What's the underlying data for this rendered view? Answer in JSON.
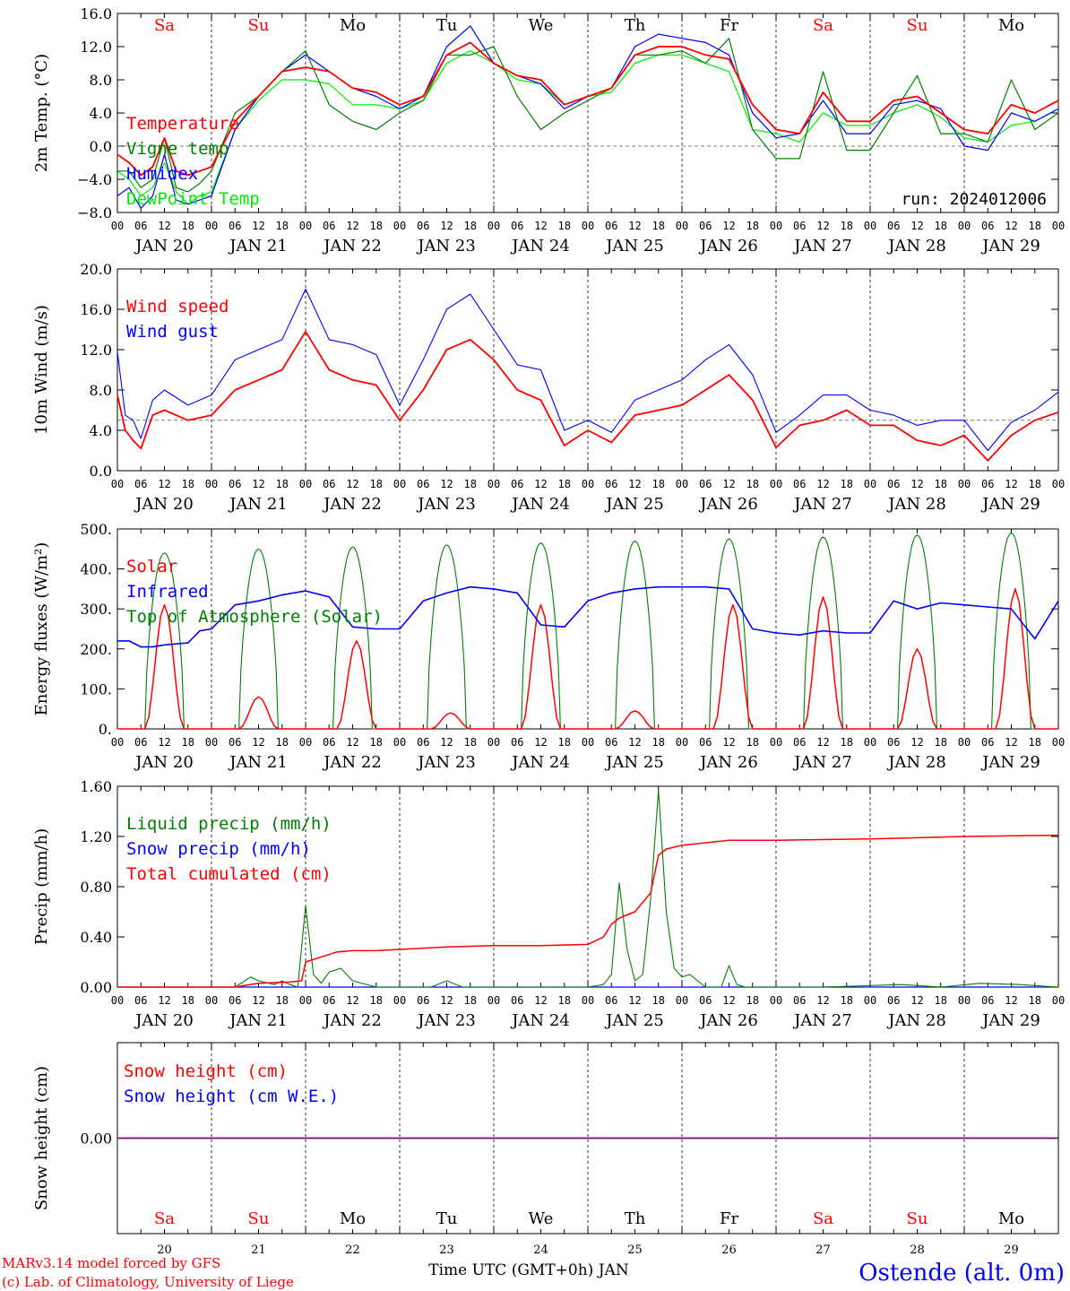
{
  "meteogram": {
    "run_label": "run: 2024012006",
    "location": "Ostende (alt. 0m)",
    "model_credit": "MARv3.14 model forced by GFS",
    "copyright": "(c) Lab. of Climatology, University of Liege",
    "time_axis_label": "Time UTC (GMT+0h)",
    "month": "JAN",
    "day_names": [
      "Sa",
      "Su",
      "Mo",
      "Tu",
      "We",
      "Th",
      "Fr",
      "Sa",
      "Su",
      "Mo"
    ],
    "date_labels": [
      "JAN 20",
      "JAN 21",
      "JAN 22",
      "JAN 23",
      "JAN 24",
      "JAN 25",
      "JAN 26",
      "JAN 27",
      "JAN 28",
      "JAN 29"
    ],
    "day_numbers": [
      "20",
      "21",
      "22",
      "23",
      "24",
      "25",
      "26",
      "27",
      "28",
      "29"
    ],
    "hour_labels": [
      "00",
      "06",
      "12",
      "18"
    ],
    "colors": {
      "weekend": "#ff0000",
      "weekday": "#000000",
      "red": "#ff0000",
      "darkgreen": "#008000",
      "blue": "#0000ff",
      "lightgreen": "#00ee00",
      "purple": "#800080"
    }
  },
  "chart_data": [
    {
      "type": "line",
      "ylabel": "2m Temp. (°C)",
      "ylim": [
        -8,
        16
      ],
      "yticks": [
        "−8.0",
        "−4.0",
        "0.0",
        "4.0",
        "8.0",
        "12.0",
        "16.0"
      ],
      "reference_line": 0,
      "x_unit": "hours since 2024-01-20 00 UTC",
      "series": [
        {
          "name": "Temperature",
          "color": "#ff0000",
          "x": [
            0,
            3,
            6,
            9,
            12,
            15,
            18,
            21,
            24,
            30,
            36,
            42,
            48,
            54,
            60,
            66,
            72,
            78,
            84,
            90,
            96,
            102,
            108,
            114,
            120,
            126,
            132,
            138,
            144,
            150,
            156,
            162,
            168,
            174,
            180,
            186,
            192,
            198,
            204,
            210,
            216,
            222,
            228,
            234,
            240
          ],
          "y": [
            -1,
            -2,
            -3.5,
            -2.5,
            1,
            -3,
            -3.5,
            -3,
            -2.5,
            3,
            6,
            9,
            9.5,
            9,
            7,
            6.5,
            5,
            6,
            11,
            12.5,
            10,
            8.5,
            8,
            5,
            6,
            7,
            11,
            12,
            12,
            11,
            10.5,
            5,
            2,
            1.5,
            6.5,
            3,
            3,
            5.5,
            6,
            4,
            2,
            1.5,
            5,
            4,
            5.5
          ]
        },
        {
          "name": "Vigne temp",
          "color": "#008000",
          "x": [
            0,
            3,
            6,
            9,
            12,
            15,
            18,
            21,
            24,
            30,
            36,
            42,
            48,
            54,
            60,
            66,
            72,
            78,
            84,
            90,
            96,
            102,
            108,
            114,
            120,
            126,
            132,
            138,
            144,
            150,
            156,
            162,
            168,
            174,
            180,
            186,
            192,
            198,
            204,
            210,
            216,
            222,
            228,
            234,
            240
          ],
          "y": [
            -3,
            -3,
            -5,
            -4,
            1,
            -5,
            -5.5,
            -4.5,
            -3,
            4,
            6,
            9,
            11.5,
            5,
            3,
            2,
            4,
            5.5,
            11,
            11,
            12,
            6,
            2,
            4,
            5.5,
            7,
            11,
            11,
            11.5,
            10,
            13,
            2,
            -1.5,
            -1.5,
            9,
            -0.5,
            -0.5,
            4,
            8.5,
            1.5,
            1.5,
            0.5,
            8,
            2,
            4
          ]
        },
        {
          "name": "Humidex",
          "color": "#0000ff",
          "x": [
            0,
            3,
            6,
            9,
            12,
            15,
            18,
            21,
            24,
            30,
            36,
            42,
            48,
            54,
            60,
            66,
            72,
            78,
            84,
            90,
            96,
            102,
            108,
            114,
            120,
            126,
            132,
            138,
            144,
            150,
            156,
            162,
            168,
            174,
            180,
            186,
            192,
            198,
            204,
            210,
            216,
            222,
            228,
            234,
            240
          ],
          "y": [
            -6,
            -5,
            -7.5,
            -6,
            -1,
            -6.5,
            -7,
            -6.5,
            -6,
            2,
            6,
            9,
            11,
            9,
            7,
            6,
            4.5,
            6,
            12,
            14.5,
            10,
            8.5,
            7.5,
            4.5,
            6,
            7,
            12,
            13.5,
            13,
            12.5,
            11,
            4,
            1,
            1.5,
            5.5,
            1.5,
            1.5,
            5,
            5.5,
            4.5,
            0,
            -0.5,
            4,
            3,
            4.5
          ]
        },
        {
          "name": "DewPoint Temp",
          "color": "#00ee00",
          "x": [
            0,
            3,
            6,
            9,
            12,
            15,
            18,
            21,
            24,
            30,
            36,
            42,
            48,
            54,
            60,
            66,
            72,
            78,
            84,
            90,
            96,
            102,
            108,
            114,
            120,
            126,
            132,
            138,
            144,
            150,
            156,
            162,
            168,
            174,
            180,
            186,
            192,
            198,
            204,
            210,
            216,
            222,
            228,
            234,
            240
          ],
          "y": [
            -3,
            -4,
            -6,
            -5,
            -2,
            -5.5,
            -7,
            -6,
            -5.5,
            2,
            5.5,
            8,
            8,
            7.5,
            5,
            5,
            4.5,
            5.5,
            10,
            11.5,
            10,
            8,
            7.5,
            5,
            6,
            6.5,
            10,
            11,
            11,
            10,
            9,
            2,
            1.5,
            0.5,
            4,
            2.5,
            2.5,
            4,
            5,
            3.5,
            1,
            0.5,
            2.5,
            3,
            4.5
          ]
        }
      ]
    },
    {
      "type": "line",
      "ylabel": "10m Wind (m/s)",
      "ylim": [
        0,
        20
      ],
      "yticks": [
        "0.0",
        "4.0",
        "8.0",
        "12.0",
        "16.0",
        "20.0"
      ],
      "reference_line": 5,
      "x_unit": "hours since 2024-01-20 00 UTC",
      "series": [
        {
          "name": "Wind speed",
          "color": "#ff0000",
          "x": [
            0,
            2,
            4,
            6,
            9,
            12,
            18,
            24,
            30,
            36,
            42,
            48,
            54,
            60,
            66,
            72,
            78,
            84,
            90,
            96,
            102,
            108,
            114,
            120,
            126,
            132,
            138,
            144,
            150,
            156,
            162,
            168,
            174,
            180,
            186,
            192,
            198,
            204,
            210,
            216,
            222,
            228,
            234,
            240
          ],
          "y": [
            7.5,
            4,
            3,
            2.2,
            5.5,
            6,
            5,
            5.5,
            8,
            9,
            10,
            13.8,
            10,
            9,
            8.5,
            5,
            8,
            12,
            13,
            11,
            8,
            7,
            2.5,
            4,
            2.8,
            5.5,
            6,
            6.5,
            8,
            9.5,
            7,
            2.3,
            4.5,
            5,
            6,
            4.5,
            4.5,
            3,
            2.5,
            3.5,
            1,
            3.5,
            5,
            5.8
          ]
        },
        {
          "name": "Wind gust",
          "color": "#0000ff",
          "x": [
            0,
            2,
            4,
            6,
            9,
            12,
            18,
            24,
            30,
            36,
            42,
            48,
            54,
            60,
            66,
            72,
            78,
            84,
            90,
            96,
            102,
            108,
            114,
            120,
            126,
            132,
            138,
            144,
            150,
            156,
            162,
            168,
            174,
            180,
            186,
            192,
            198,
            204,
            210,
            216,
            222,
            228,
            234,
            240
          ],
          "y": [
            11.8,
            5.5,
            5,
            3.2,
            7,
            8,
            6.5,
            7.5,
            11,
            12,
            13,
            18,
            13,
            12.5,
            11.5,
            6.5,
            11,
            16,
            17.5,
            14,
            10.5,
            10,
            4,
            5,
            3.8,
            7,
            8,
            9,
            11,
            12.5,
            9.5,
            3.8,
            5.5,
            7.5,
            7.5,
            6,
            5.5,
            4.5,
            5,
            5,
            2,
            4.8,
            6,
            7.8
          ]
        }
      ]
    },
    {
      "type": "line",
      "ylabel": "Energy fluxes (W/m²)",
      "ylim": [
        0,
        500
      ],
      "yticks": [
        "0.",
        "100.",
        "200.",
        "300.",
        "400.",
        "500."
      ],
      "x_unit": "hours since 2024-01-20 00 UTC",
      "series": [
        {
          "name": "Solar",
          "color": "#ff0000",
          "daily_peak_W_m2": [
            310,
            80,
            220,
            40,
            310,
            45,
            310,
            330,
            200,
            350
          ],
          "daily_peak_hour": [
            12,
            12,
            13,
            13,
            12,
            12,
            13,
            12,
            12,
            13
          ]
        },
        {
          "name": "Infrared",
          "color": "#0000ff",
          "x": [
            0,
            3,
            6,
            9,
            12,
            18,
            21,
            24,
            30,
            36,
            42,
            48,
            54,
            60,
            66,
            72,
            78,
            84,
            90,
            96,
            102,
            108,
            114,
            120,
            126,
            132,
            138,
            144,
            150,
            156,
            162,
            168,
            174,
            180,
            186,
            192,
            198,
            204,
            210,
            216,
            222,
            228,
            234,
            240
          ],
          "y": [
            220,
            220,
            205,
            205,
            210,
            215,
            245,
            250,
            310,
            320,
            335,
            345,
            330,
            255,
            250,
            250,
            320,
            340,
            355,
            350,
            340,
            260,
            255,
            320,
            340,
            350,
            355,
            355,
            355,
            350,
            250,
            240,
            235,
            245,
            240,
            240,
            320,
            300,
            315,
            310,
            305,
            300,
            225,
            320
          ]
        },
        {
          "name": "Top of Atmosphere (Solar)",
          "color": "#008000",
          "daily_peak_W_m2": [
            440,
            450,
            455,
            460,
            465,
            470,
            475,
            480,
            485,
            490
          ],
          "sunrise_hour": 7,
          "sunset_hour": 17
        }
      ]
    },
    {
      "type": "line",
      "ylabel": "Precip (mm/h)",
      "ylim": [
        0,
        1.6
      ],
      "yticks": [
        "0.00",
        "0.40",
        "0.80",
        "1.20",
        "1.60"
      ],
      "x_unit": "hours since 2024-01-20 00 UTC",
      "series": [
        {
          "name": "Liquid precip (mm/h)",
          "color": "#008000",
          "x": [
            0,
            30,
            34,
            36,
            40,
            42,
            44,
            46,
            48,
            50,
            52,
            54,
            57,
            60,
            66,
            80,
            84,
            88,
            120,
            124,
            126,
            128,
            130,
            132,
            134,
            136,
            138,
            140,
            142,
            144,
            146,
            148,
            150,
            152,
            154,
            156,
            158,
            160,
            180,
            200,
            210,
            220,
            230,
            240
          ],
          "y": [
            0,
            0,
            0.08,
            0.05,
            0.02,
            0.05,
            0.02,
            0.0,
            0.65,
            0.1,
            0.03,
            0.12,
            0.15,
            0.05,
            0.0,
            0.0,
            0.05,
            0.0,
            0.0,
            0.02,
            0.1,
            0.83,
            0.3,
            0.05,
            0.1,
            0.7,
            1.57,
            0.6,
            0.15,
            0.08,
            0.1,
            0.05,
            0.0,
            0.0,
            0.0,
            0.17,
            0.02,
            0.0,
            0.0,
            0.02,
            0.0,
            0.03,
            0.02,
            0.0
          ]
        },
        {
          "name": "Snow precip (mm/h)",
          "color": "#0000ff",
          "x": [
            0,
            240
          ],
          "y": [
            0,
            0
          ]
        },
        {
          "name": "Total cumulated (cm)",
          "color": "#ff0000",
          "x": [
            0,
            30,
            36,
            44,
            47,
            48,
            50,
            56,
            60,
            66,
            72,
            84,
            96,
            108,
            120,
            124,
            126,
            128,
            132,
            136,
            138,
            140,
            144,
            156,
            168,
            192,
            216,
            240
          ],
          "y": [
            0,
            0,
            0.03,
            0.04,
            0.05,
            0.2,
            0.22,
            0.28,
            0.29,
            0.29,
            0.3,
            0.32,
            0.33,
            0.33,
            0.34,
            0.4,
            0.5,
            0.55,
            0.6,
            0.75,
            1.05,
            1.1,
            1.13,
            1.17,
            1.17,
            1.18,
            1.2,
            1.21
          ]
        }
      ]
    },
    {
      "type": "line",
      "ylabel": "Snow height (cm)",
      "ylim": [
        -1,
        1
      ],
      "yticks": [
        "0.00"
      ],
      "x_unit": "hours since 2024-01-20 00 UTC",
      "series": [
        {
          "name": "Snow height (cm)",
          "color": "#ff0000",
          "x": [
            0,
            240
          ],
          "y": [
            0,
            0
          ]
        },
        {
          "name": "Snow height (cm W.E.)",
          "color": "#0000ff",
          "x": [
            0,
            240
          ],
          "y": [
            0,
            0
          ]
        }
      ]
    }
  ]
}
